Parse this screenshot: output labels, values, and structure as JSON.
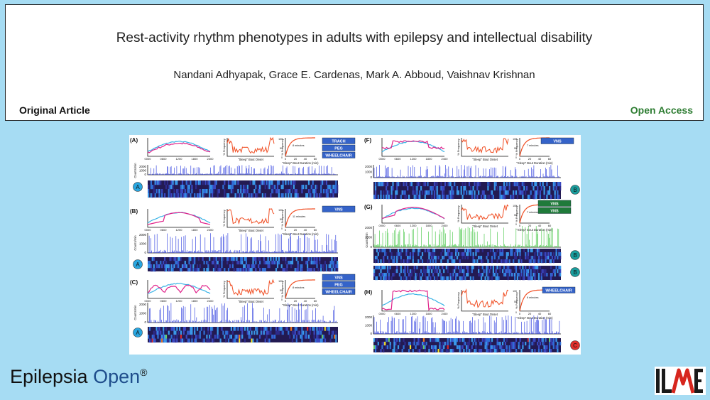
{
  "header": {
    "title": "Rest-activity rhythm phenotypes in adults with epilepsy and intellectual disability",
    "authors": "Nandani Adhyapak, Grace E. Cardenas, Mark A. Abboud, Vaishnav Krishnan",
    "article_type": "Original Article",
    "access": "Open Access"
  },
  "figure": {
    "panels": [
      {
        "label": "(A)",
        "tags": [
          "TRACH",
          "PEG",
          "WHEELCHAIR"
        ],
        "minutes": "8 minutes",
        "groups": [
          "A"
        ]
      },
      {
        "label": "(B)",
        "tags": [
          "VNS"
        ],
        "minutes": "11 minutes",
        "groups": [
          "A"
        ]
      },
      {
        "label": "(C)",
        "tags": [
          "VNS",
          "PEG",
          "WHEELCHAIR"
        ],
        "minutes": "8 minutes",
        "groups": [
          "A"
        ]
      },
      {
        "label": "(F)",
        "tags": [
          "VNS"
        ],
        "minutes": "7 minutes",
        "groups": [
          "B"
        ]
      },
      {
        "label": "(G)",
        "tags": [
          "VNS",
          "VNS"
        ],
        "minutes": "7 minutes",
        "groups": [
          "B",
          "B"
        ]
      },
      {
        "label": "(H)",
        "tags": [
          "WHEELCHAIR"
        ],
        "minutes": "6 minutes",
        "groups": [
          "C"
        ]
      }
    ],
    "axis_labels": {
      "counts": "Counts/min",
      "frequency": "% Frequency",
      "sleep_onset": "\"Sleep\" Bout Onset",
      "sleep_duration": "\"Sleep\" Bout Duration (min)"
    },
    "time_ticks": [
      "0000",
      "0600",
      "1200",
      "1800",
      "2400"
    ],
    "duration_ticks": [
      "0",
      "20",
      "40",
      "60"
    ],
    "count_ticks": [
      "2000",
      "1000",
      "0"
    ],
    "freq_ticks": [
      "100",
      "50",
      "0"
    ],
    "colors": {
      "tag_blue": "#3563c9",
      "tag_green": "#1f7a3a",
      "circle_A": "#29a6e0",
      "circle_B": "#1b9e9e",
      "circle_C": "#e0302b",
      "activity_blue": "#2233dd",
      "activity_green": "#3cc43c",
      "curve_magenta": "#e0228a",
      "curve_cyan": "#39b3e6",
      "curve_orange": "#f04e23",
      "curve_teal": "#0d8a6a",
      "heatmap_bg": "#231a52"
    }
  },
  "footer": {
    "journal_prefix": "Epilepsia",
    "journal_suffix": "Open",
    "trademark": "®",
    "logo_text": "ILAE",
    "logo_icon": "ilae-logo-icon"
  }
}
